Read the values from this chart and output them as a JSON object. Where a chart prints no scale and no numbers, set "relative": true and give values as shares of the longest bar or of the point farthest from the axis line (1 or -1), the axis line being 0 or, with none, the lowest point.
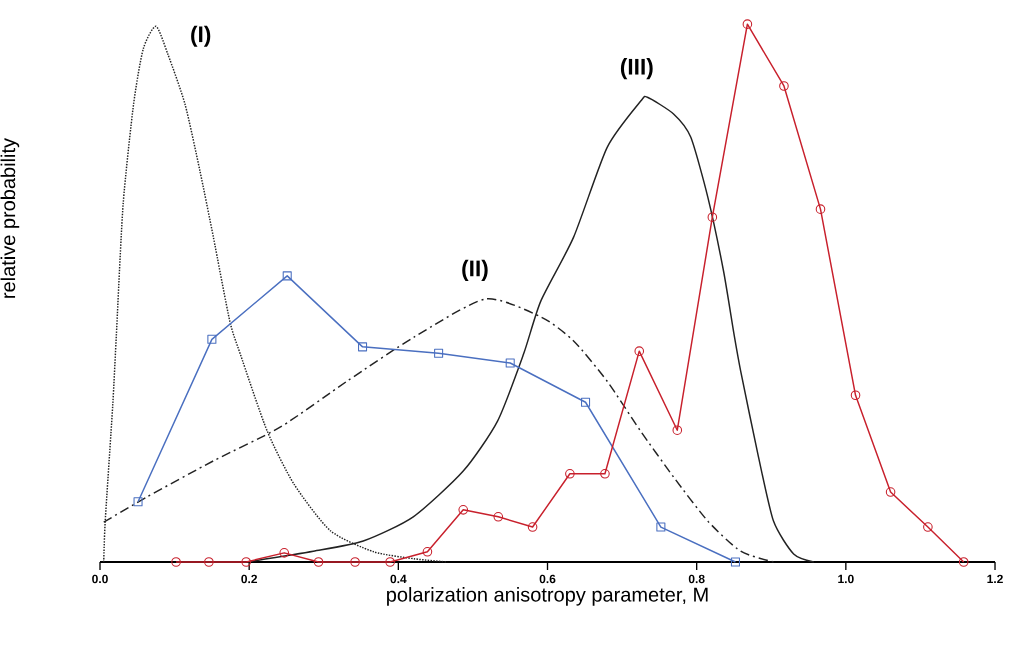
{
  "chart_data": {
    "type": "line",
    "relative": true,
    "xlabel": "polarization anisotropy parameter, M",
    "ylabel": "relative probability",
    "xlim": [
      0,
      1.2
    ],
    "xticks": [
      {
        "value": 0,
        "label": "0.0"
      },
      {
        "value": 0.2,
        "label": "0.2"
      },
      {
        "value": 0.4,
        "label": "0.4"
      },
      {
        "value": 0.6,
        "label": "0.6"
      },
      {
        "value": 0.8,
        "label": "0.8"
      },
      {
        "value": 1.0,
        "label": "1.0"
      },
      {
        "value": 1.2,
        "label": "1.2"
      }
    ],
    "annotations": [
      "(I)",
      "(II)",
      "(III)"
    ],
    "series": [
      {
        "color": "#222222",
        "marker": "none",
        "line_style": "dotted",
        "x": [
          0.005,
          0.007,
          0.017,
          0.022,
          0.031,
          0.045,
          0.058,
          0.075,
          0.091,
          0.114,
          0.134,
          0.152,
          0.174,
          0.188,
          0.224,
          0.26,
          0.309,
          0.367,
          0.421,
          0.466
        ],
        "values": [
          0,
          0.076,
          0.29,
          0.424,
          0.665,
          0.851,
          0.954,
          0.996,
          0.944,
          0.851,
          0.727,
          0.604,
          0.448,
          0.387,
          0.244,
          0.145,
          0.058,
          0.019,
          0.006,
          0
        ]
      },
      {
        "color": "#222222",
        "marker": "none",
        "line_style": "dashed",
        "x": [
          0.005,
          0.063,
          0.152,
          0.242,
          0.331,
          0.421,
          0.517,
          0.592,
          0.635,
          0.68,
          0.725,
          0.769,
          0.815,
          0.859,
          0.903
        ],
        "values": [
          0.074,
          0.121,
          0.188,
          0.251,
          0.336,
          0.418,
          0.489,
          0.455,
          0.411,
          0.336,
          0.243,
          0.158,
          0.076,
          0.02,
          0
        ]
      },
      {
        "color": "#222222",
        "marker": "none",
        "line_style": "solid",
        "x": [
          0.197,
          0.286,
          0.353,
          0.42,
          0.487,
          0.533,
          0.568,
          0.591,
          0.635,
          0.68,
          0.725,
          0.734,
          0.769,
          0.792,
          0.815,
          0.836,
          0.85,
          0.859,
          0.882,
          0.903,
          0.93,
          0.957
        ],
        "values": [
          0,
          0.02,
          0.039,
          0.084,
          0.169,
          0.262,
          0.387,
          0.485,
          0.604,
          0.771,
          0.857,
          0.864,
          0.833,
          0.79,
          0.678,
          0.541,
          0.424,
          0.355,
          0.201,
          0.076,
          0.015,
          0
        ]
      },
      {
        "color": "#4a6fc0",
        "marker": "square",
        "line_style": "solid",
        "x": [
          0.051,
          0.15,
          0.251,
          0.352,
          0.454,
          0.55,
          0.651,
          0.752,
          0.852
        ],
        "values": [
          0.112,
          0.414,
          0.532,
          0.4,
          0.388,
          0.37,
          0.297,
          0.065,
          0
        ]
      },
      {
        "color": "#c8202c",
        "marker": "circle",
        "line_style": "solid",
        "x": [
          0.102,
          0.146,
          0.196,
          0.247,
          0.293,
          0.342,
          0.389,
          0.439,
          0.487,
          0.534,
          0.58,
          0.63,
          0.677,
          0.723,
          0.774,
          0.821,
          0.868,
          0.917,
          0.966,
          1.013,
          1.06,
          1.11,
          1.158
        ],
        "values": [
          0,
          0,
          0,
          0.017,
          0,
          0,
          0,
          0.019,
          0.097,
          0.084,
          0.065,
          0.164,
          0.164,
          0.392,
          0.245,
          0.641,
          1.0,
          0.885,
          0.656,
          0.31,
          0.13,
          0.065,
          0
        ]
      }
    ]
  }
}
